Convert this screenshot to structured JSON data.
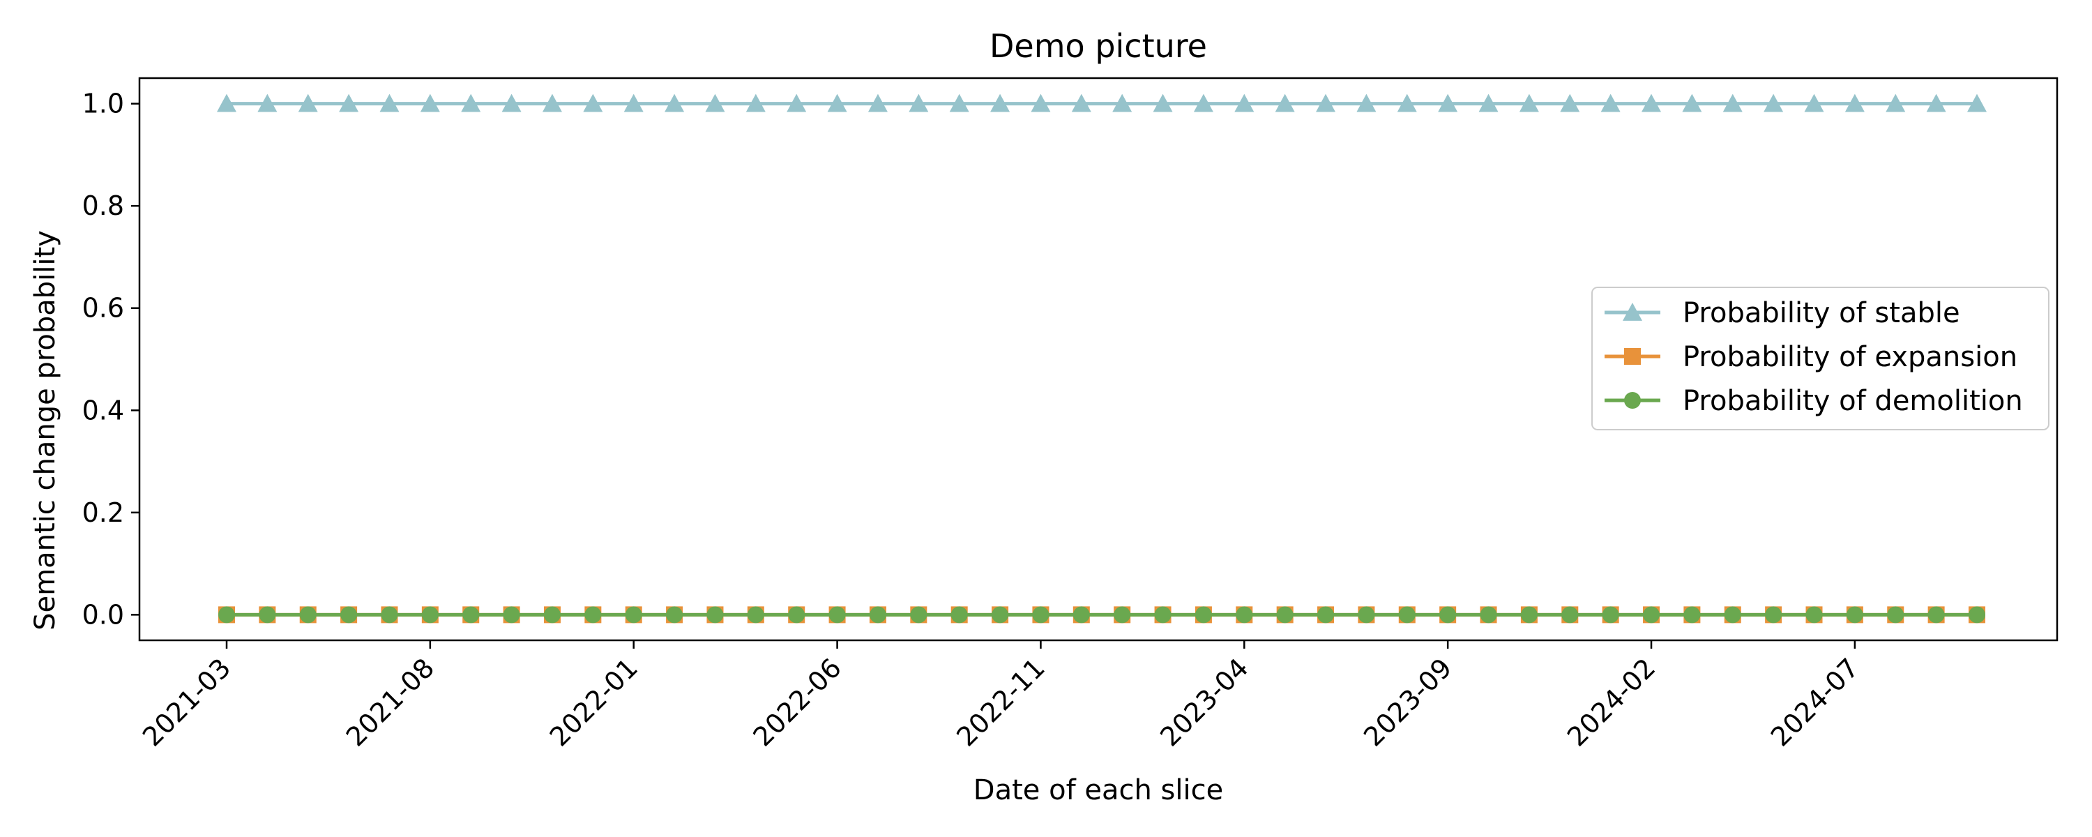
{
  "chart_data": {
    "type": "line",
    "title": "Demo picture",
    "xlabel": "Date of each slice",
    "ylabel": "Semantic change probability",
    "x": [
      "2021-03",
      "2021-04",
      "2021-05",
      "2021-06",
      "2021-07",
      "2021-08",
      "2021-09",
      "2021-10",
      "2021-11",
      "2021-12",
      "2022-01",
      "2022-02",
      "2022-03",
      "2022-04",
      "2022-05",
      "2022-06",
      "2022-07",
      "2022-08",
      "2022-09",
      "2022-10",
      "2022-11",
      "2022-12",
      "2023-01",
      "2023-02",
      "2023-03",
      "2023-04",
      "2023-05",
      "2023-06",
      "2023-07",
      "2023-08",
      "2023-09",
      "2023-10",
      "2023-11",
      "2023-12",
      "2024-01",
      "2024-02",
      "2024-03",
      "2024-04",
      "2024-05",
      "2024-06",
      "2024-07",
      "2024-08",
      "2024-09",
      "2024-10"
    ],
    "x_ticks": [
      "2021-03",
      "2021-08",
      "2022-01",
      "2022-06",
      "2022-11",
      "2023-04",
      "2023-09",
      "2024-02",
      "2024-07"
    ],
    "ylim": [
      -0.05,
      1.05
    ],
    "y_ticks": [
      0.0,
      0.2,
      0.4,
      0.6,
      0.8,
      1.0
    ],
    "y_tick_labels": [
      "0.0",
      "0.2",
      "0.4",
      "0.6",
      "0.8",
      "1.0"
    ],
    "grid": false,
    "legend_position": "center-right",
    "series": [
      {
        "name": "Probability of stable",
        "marker": "triangle",
        "color": "#96c3cb",
        "values": [
          1,
          1,
          1,
          1,
          1,
          1,
          1,
          1,
          1,
          1,
          1,
          1,
          1,
          1,
          1,
          1,
          1,
          1,
          1,
          1,
          1,
          1,
          1,
          1,
          1,
          1,
          1,
          1,
          1,
          1,
          1,
          1,
          1,
          1,
          1,
          1,
          1,
          1,
          1,
          1,
          1,
          1,
          1,
          1
        ]
      },
      {
        "name": "Probability of expansion",
        "marker": "square",
        "color": "#e8923a",
        "values": [
          0,
          0,
          0,
          0,
          0,
          0,
          0,
          0,
          0,
          0,
          0,
          0,
          0,
          0,
          0,
          0,
          0,
          0,
          0,
          0,
          0,
          0,
          0,
          0,
          0,
          0,
          0,
          0,
          0,
          0,
          0,
          0,
          0,
          0,
          0,
          0,
          0,
          0,
          0,
          0,
          0,
          0,
          0,
          0
        ]
      },
      {
        "name": "Probability of demolition",
        "marker": "circle",
        "color": "#6aa84f",
        "values": [
          0,
          0,
          0,
          0,
          0,
          0,
          0,
          0,
          0,
          0,
          0,
          0,
          0,
          0,
          0,
          0,
          0,
          0,
          0,
          0,
          0,
          0,
          0,
          0,
          0,
          0,
          0,
          0,
          0,
          0,
          0,
          0,
          0,
          0,
          0,
          0,
          0,
          0,
          0,
          0,
          0,
          0,
          0,
          0
        ]
      }
    ]
  }
}
